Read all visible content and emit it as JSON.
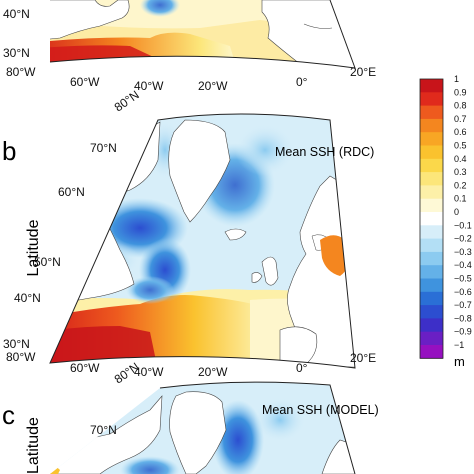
{
  "panel_a": {
    "lat_ticks": [
      "40°N",
      "30°N"
    ],
    "lon_ticks": [
      "80°W",
      "60°W",
      "40°W",
      "20°W",
      "0°",
      "20°E"
    ]
  },
  "panel_b": {
    "label": "b",
    "title": "Mean SSH (RDC)",
    "ylabel": "Latitude",
    "top_tick": "80°N",
    "lat_ticks": [
      "70°N",
      "60°N",
      "50°N",
      "40°N",
      "30°N"
    ],
    "lon_ticks": [
      "80°W",
      "60°W",
      "40°W",
      "20°W",
      "0°",
      "20°E"
    ]
  },
  "panel_c": {
    "label": "c",
    "title": "Mean SSH (MODEL)",
    "ylabel": "Latitude",
    "top_tick": "80°N",
    "lat_ticks": [
      "70°N"
    ]
  },
  "colorbar": {
    "ticks": [
      "1",
      "0.9",
      "0.8",
      "0.7",
      "0.6",
      "0.5",
      "0.4",
      "0.3",
      "0.2",
      "0.1",
      "0",
      "−0.1",
      "−0.2",
      "−0.3",
      "−0.4",
      "−0.5",
      "−0.6",
      "−0.7",
      "−0.8",
      "−0.9",
      "−1"
    ],
    "colors": [
      "#c8141a",
      "#e02a1c",
      "#ee5a1e",
      "#f4861f",
      "#f8a624",
      "#fac22e",
      "#fbd84a",
      "#fce67a",
      "#fdf0a8",
      "#fef9d6",
      "#ffffff",
      "#d7eef9",
      "#b3dff5",
      "#8ccbf0",
      "#64b1e8",
      "#3f93de",
      "#2a6fd6",
      "#2c4ed0",
      "#3d2fc8",
      "#6a1fc4",
      "#9610c0"
    ],
    "unit": "m"
  }
}
